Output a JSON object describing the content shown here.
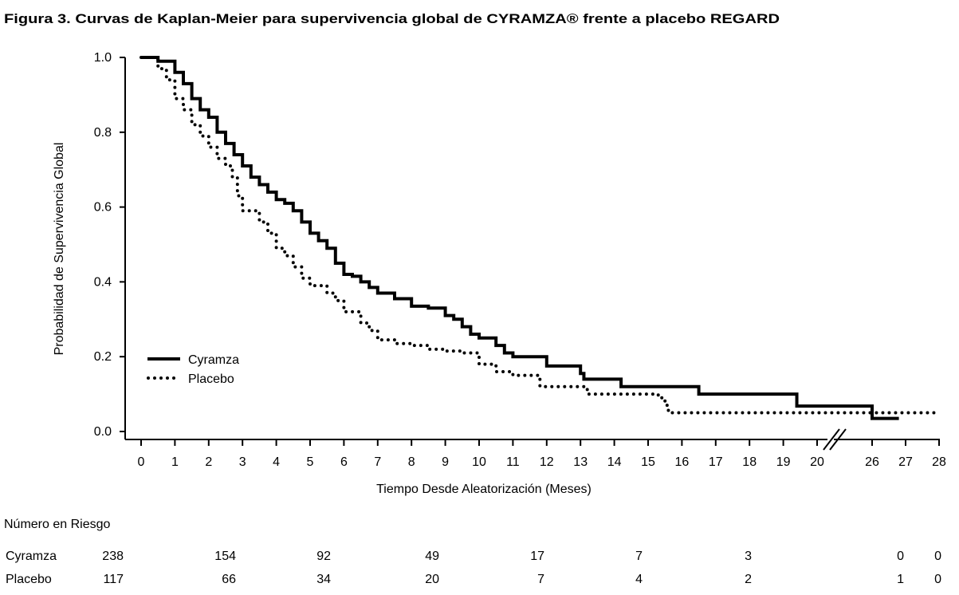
{
  "chart_data": {
    "type": "line",
    "title": "Figura 3. Curvas de Kaplan-Meier para supervivencia global de CYRAMZA® frente a placebo REGARD",
    "xlabel": "Tiempo Desde Aleatorización (Meses)",
    "ylabel": "Probabilidad de Supervivencia Global",
    "ylim": [
      0,
      1.0
    ],
    "yticks": [
      "0.0",
      "0.2",
      "0.4",
      "0.6",
      "0.8",
      "1.0"
    ],
    "xticks": [
      "0",
      "1",
      "2",
      "3",
      "4",
      "5",
      "6",
      "7",
      "8",
      "9",
      "10",
      "11",
      "12",
      "13",
      "14",
      "15",
      "16",
      "17",
      "18",
      "19",
      "20",
      "26",
      "27",
      "28"
    ],
    "axis_break": "20-26",
    "legend_position": "bottom-left",
    "series": [
      {
        "name": "Cyramza",
        "style": "solid",
        "x": [
          0,
          0.5,
          1,
          1.25,
          1.5,
          1.75,
          2,
          2.25,
          2.5,
          2.75,
          3,
          3.25,
          3.5,
          3.75,
          4,
          4.25,
          4.5,
          4.75,
          5,
          5.25,
          5.5,
          5.75,
          6,
          6.25,
          6.5,
          6.75,
          7,
          7.5,
          8,
          8.5,
          9,
          9.25,
          9.5,
          9.75,
          10,
          10.5,
          10.75,
          11,
          12,
          13,
          13.1,
          14.2,
          16.5,
          19.4,
          26,
          26.8
        ],
        "y": [
          1.0,
          0.99,
          0.96,
          0.93,
          0.89,
          0.86,
          0.84,
          0.8,
          0.77,
          0.74,
          0.71,
          0.68,
          0.66,
          0.64,
          0.62,
          0.61,
          0.59,
          0.56,
          0.53,
          0.51,
          0.49,
          0.45,
          0.42,
          0.415,
          0.4,
          0.385,
          0.37,
          0.355,
          0.335,
          0.33,
          0.31,
          0.3,
          0.28,
          0.26,
          0.25,
          0.23,
          0.21,
          0.2,
          0.175,
          0.155,
          0.14,
          0.12,
          0.1,
          0.068,
          0.035,
          0.035
        ]
      },
      {
        "name": "Placebo",
        "style": "dotted",
        "x": [
          0,
          0.5,
          0.75,
          1,
          1.25,
          1.5,
          1.75,
          2,
          2.25,
          2.5,
          2.7,
          2.85,
          3,
          3.5,
          3.75,
          4,
          4.25,
          4.5,
          4.75,
          5,
          5.5,
          5.75,
          6,
          6.5,
          6.75,
          7,
          7.5,
          8,
          8.5,
          9,
          9.5,
          10,
          10.5,
          11,
          11.8,
          13.2,
          15.3,
          15.5,
          15.6,
          28
        ],
        "y": [
          1.0,
          0.97,
          0.94,
          0.89,
          0.86,
          0.82,
          0.79,
          0.76,
          0.73,
          0.71,
          0.68,
          0.63,
          0.59,
          0.56,
          0.53,
          0.49,
          0.47,
          0.44,
          0.41,
          0.39,
          0.37,
          0.35,
          0.32,
          0.29,
          0.27,
          0.245,
          0.235,
          0.23,
          0.22,
          0.215,
          0.21,
          0.18,
          0.16,
          0.15,
          0.12,
          0.1,
          0.09,
          0.07,
          0.05,
          0.05
        ]
      }
    ],
    "risk_table": {
      "header": "Número en Riesgo",
      "rows": [
        {
          "label": "Cyramza",
          "values": [
            "238",
            "154",
            "92",
            "49",
            "17",
            "7",
            "3",
            "0",
            "0"
          ]
        },
        {
          "label": "Placebo",
          "values": [
            "117",
            "66",
            "34",
            "20",
            "7",
            "4",
            "2",
            "1",
            "0"
          ]
        }
      ]
    }
  }
}
